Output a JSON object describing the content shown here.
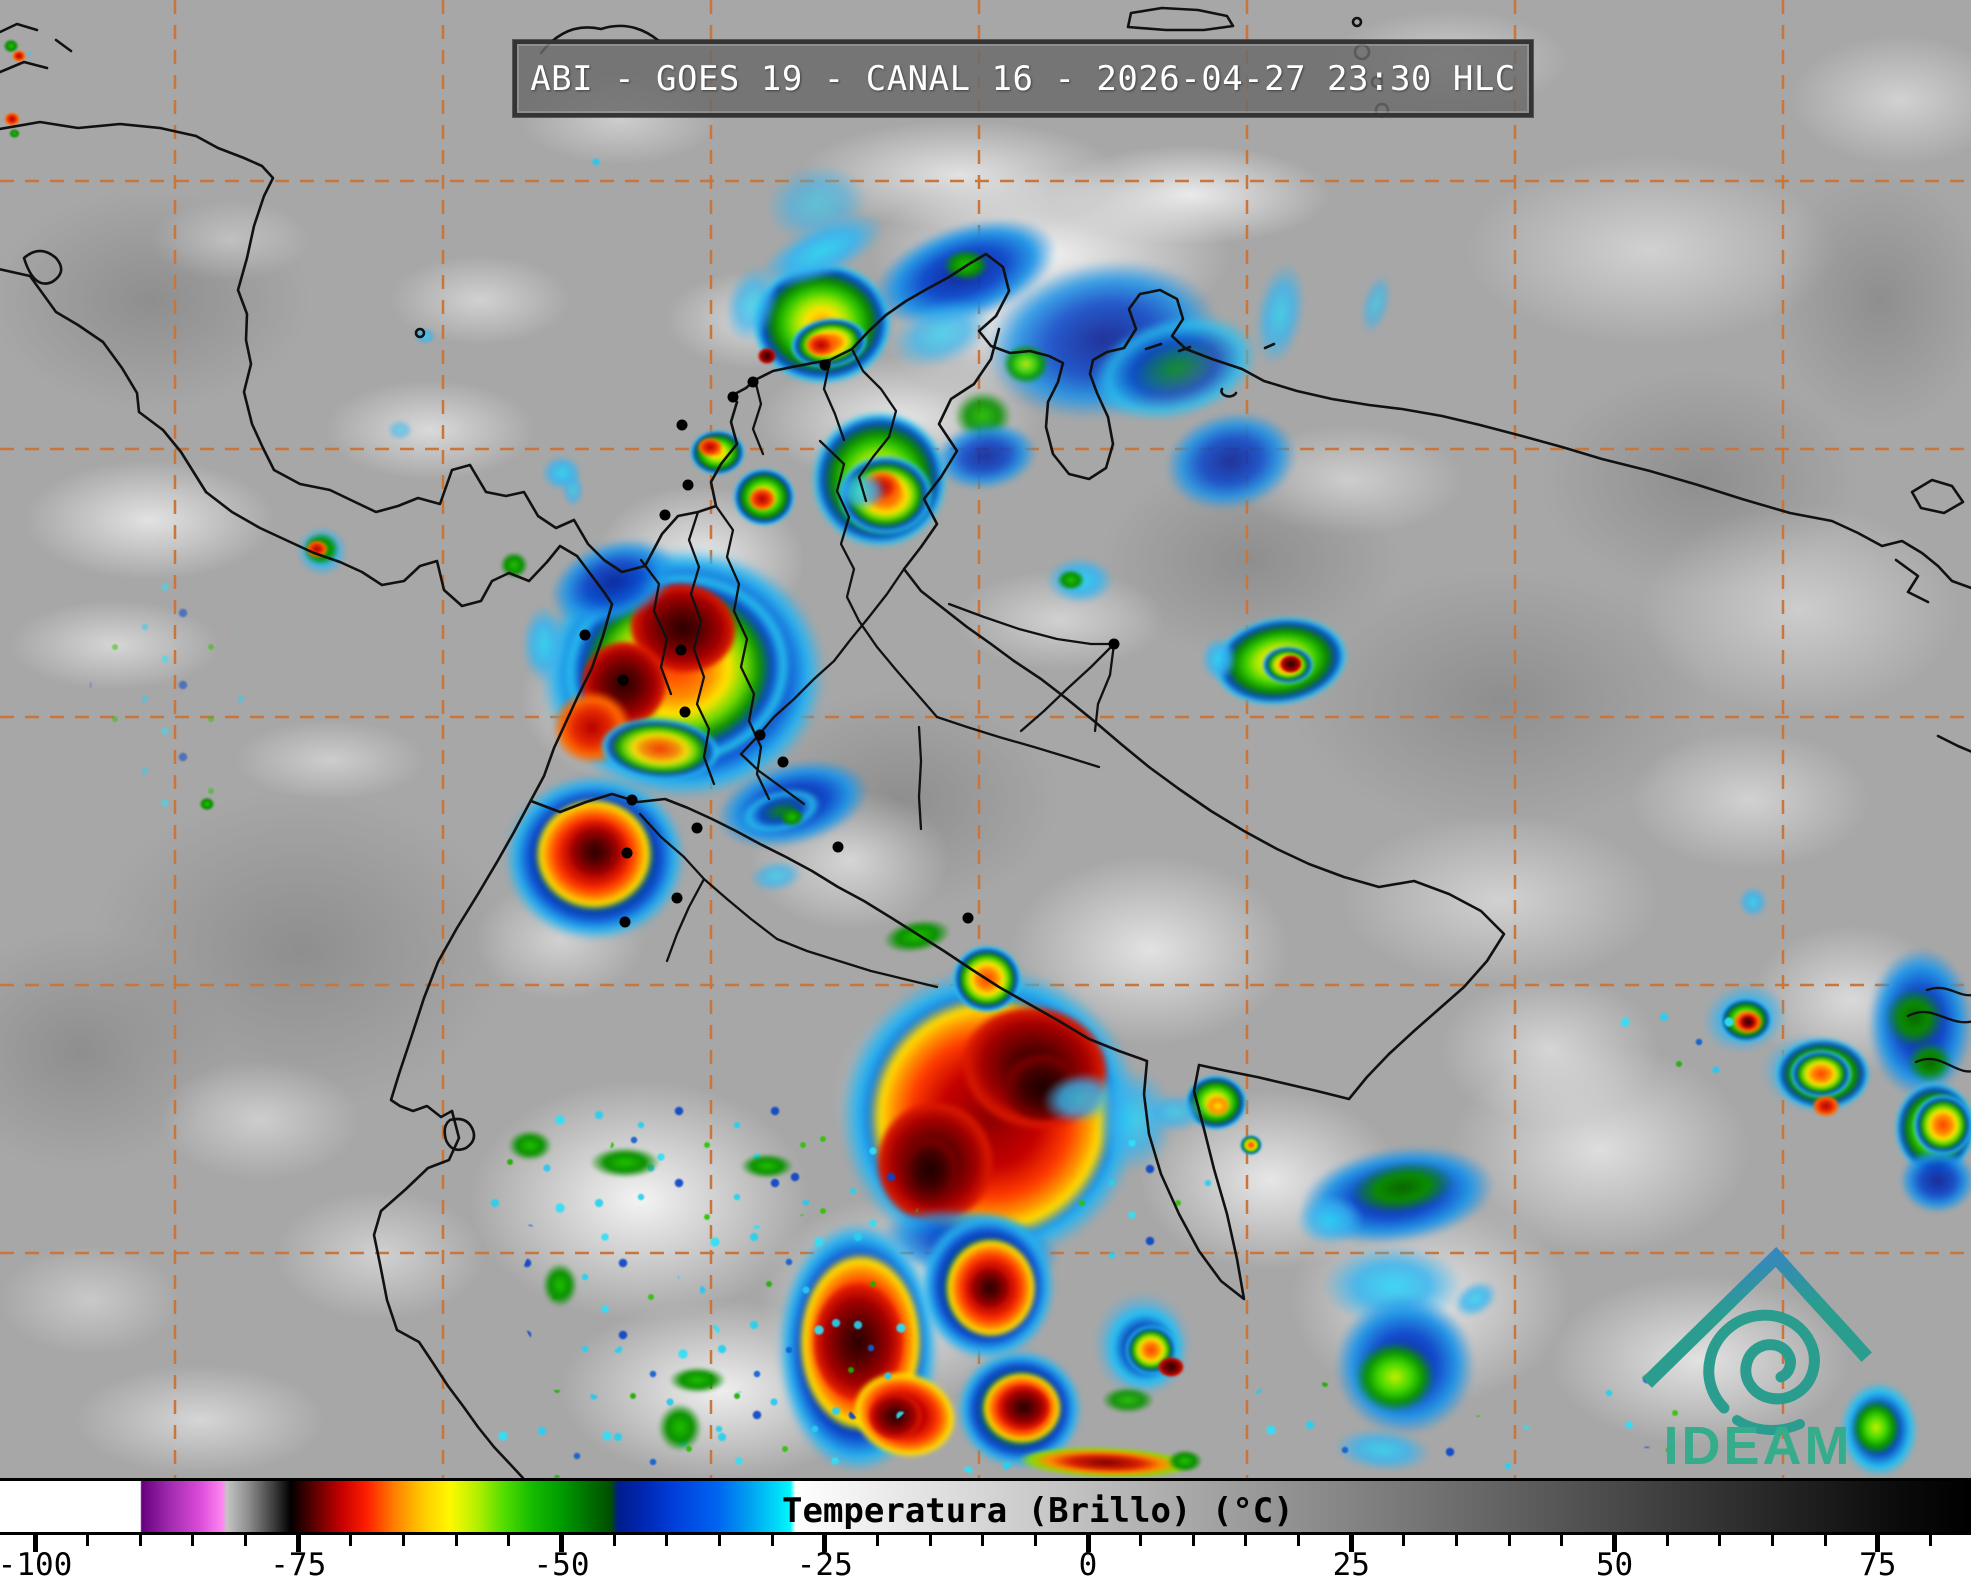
{
  "header": {
    "title": "ABI - GOES 19 - CANAL 16 - 2026-04-27 23:30 HLC",
    "satellite": "GOES 19",
    "instrument": "ABI",
    "channel": "CANAL 16",
    "datetime": "2026-04-27 23:30",
    "timezone": "HLC"
  },
  "colorbar": {
    "label": "Temperatura (Brillo) (°C)",
    "units": "°C",
    "major_ticks": [
      -100,
      -75,
      -50,
      -25,
      0,
      25,
      50,
      75
    ],
    "major_tick_labels": [
      "-100",
      "-75",
      "-50",
      "-25",
      "0",
      "25",
      "50",
      "75"
    ],
    "minor_tick_step": 5,
    "value_range": [
      -103,
      84
    ],
    "palette": [
      {
        "temp_c": -100,
        "color": "#ffffff"
      },
      {
        "temp_c": -88,
        "color": "#a02aae"
      },
      {
        "temp_c": -82,
        "color": "#ff86f0"
      },
      {
        "temp_c": -79,
        "color": "#8e8e8e"
      },
      {
        "temp_c": -75,
        "color": "#000000"
      },
      {
        "temp_c": -70,
        "color": "#c80000"
      },
      {
        "temp_c": -65,
        "color": "#ff7e00"
      },
      {
        "temp_c": -60,
        "color": "#fff800"
      },
      {
        "temp_c": -52,
        "color": "#14bc00"
      },
      {
        "temp_c": -44,
        "color": "#004e00"
      },
      {
        "temp_c": -42,
        "color": "#0028b4"
      },
      {
        "temp_c": -31,
        "color": "#00a0f0"
      },
      {
        "temp_c": -28,
        "color": "#00f8ff"
      },
      {
        "temp_c": -27,
        "color": "#ffffff"
      },
      {
        "temp_c": 80,
        "color": "#000000"
      }
    ]
  },
  "map": {
    "grid_color": "#c8763c",
    "coastline_color": "#111111",
    "background_gray": "#a7a7a7"
  },
  "logo": {
    "text": "IDEAM",
    "teal": "#2a9d8f",
    "blue": "#3b82c8",
    "text_color": "#35ad8c"
  }
}
